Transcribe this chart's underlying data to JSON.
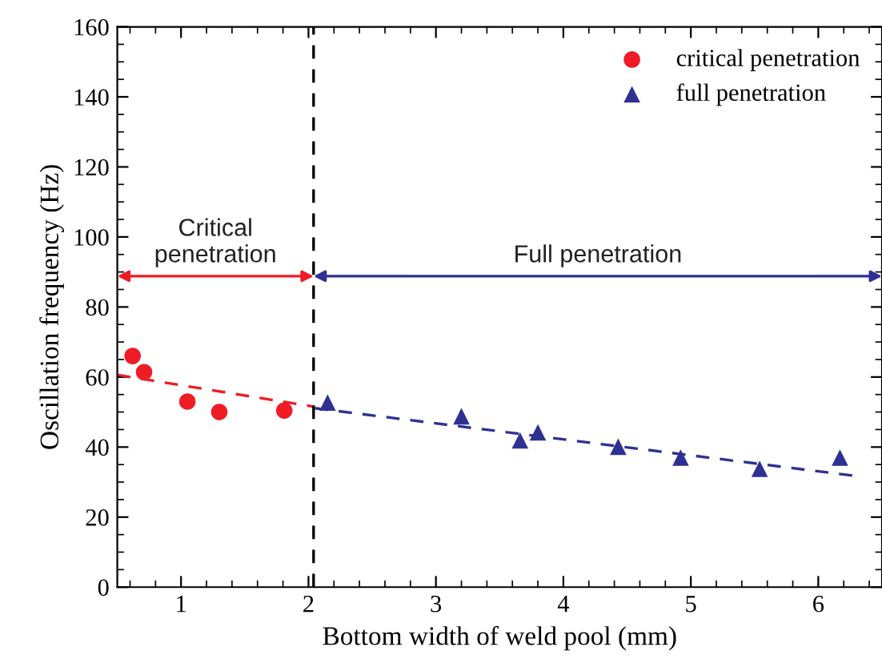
{
  "chart_data": {
    "type": "scatter",
    "xlabel": "Bottom width of weld pool (mm)",
    "ylabel": "Oscillation frequency (Hz)",
    "xlim": [
      0.5,
      6.5
    ],
    "xticks": [
      1,
      2,
      3,
      4,
      5,
      6
    ],
    "ylim": [
      0,
      160
    ],
    "yticks": [
      0,
      20,
      40,
      60,
      80,
      100,
      120,
      140,
      160
    ],
    "legend": "top right",
    "grid": false,
    "series": [
      {
        "name": "critical penetration",
        "color": "#ee1c25",
        "marker": "circle",
        "x": [
          0.62,
          0.71,
          1.05,
          1.3,
          1.81
        ],
        "values": [
          66,
          61.4,
          53,
          50,
          50.4
        ]
      },
      {
        "name": "full penetration",
        "color": "#2e3192",
        "marker": "triangle",
        "x": [
          2.15,
          3.2,
          3.66,
          3.8,
          4.43,
          4.92,
          5.54,
          6.17
        ],
        "values": [
          52.7,
          48.8,
          41.9,
          44.2,
          40.1,
          37,
          33.8,
          37
        ]
      },
      {
        "type": "line",
        "color": "#ee1c25",
        "line_style": "dashed",
        "x": [
          0.5,
          2.05
        ],
        "values": [
          60.6,
          51.5
        ]
      },
      {
        "type": "line",
        "color": "#2e3192",
        "line_style": "dashed",
        "x": [
          2.05,
          6.3
        ],
        "values": [
          51.1,
          31.7
        ]
      }
    ],
    "annotations": [
      "Critical\npenetration",
      "Full penetration"
    ],
    "ref_lines": [
      {
        "axis": "x",
        "value": 2.04,
        "color": "#000000",
        "line_style": "dashed"
      }
    ]
  }
}
